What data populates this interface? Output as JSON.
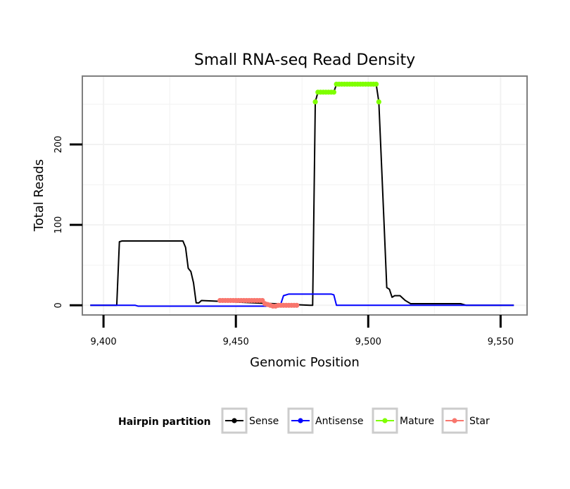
{
  "chart_data": {
    "type": "line",
    "title": "Small RNA-seq Read Density",
    "xlabel": "Genomic Position",
    "ylabel": "Total Reads",
    "xlim": [
      9392,
      9560
    ],
    "ylim": [
      -12,
      285
    ],
    "x_ticks": [
      9400,
      9450,
      9500,
      9550
    ],
    "x_tick_labels": [
      "9,400",
      "9,450",
      "9,500",
      "9,550"
    ],
    "y_ticks": [
      0,
      100,
      200
    ],
    "y_tick_labels": [
      "0",
      "100",
      "200"
    ],
    "grid": true,
    "legend_position": "bottom",
    "legend_title": "Hairpin partition",
    "series": [
      {
        "name": "Sense",
        "color": "#000000",
        "points": [
          [
            9395,
            0
          ],
          [
            9405,
            0
          ],
          [
            9406,
            79
          ],
          [
            9407,
            80
          ],
          [
            9430,
            80
          ],
          [
            9431,
            72
          ],
          [
            9432,
            46
          ],
          [
            9433,
            42
          ],
          [
            9434,
            28
          ],
          [
            9435,
            3
          ],
          [
            9436,
            3
          ],
          [
            9437,
            6
          ],
          [
            9478,
            0
          ],
          [
            9479,
            0
          ],
          [
            9480,
            253
          ],
          [
            9481,
            265
          ],
          [
            9487,
            265
          ],
          [
            9488,
            275
          ],
          [
            9502,
            275
          ],
          [
            9503,
            275
          ],
          [
            9504,
            253
          ],
          [
            9506,
            100
          ],
          [
            9507,
            22
          ],
          [
            9508,
            20
          ],
          [
            9509,
            10
          ],
          [
            9510,
            12
          ],
          [
            9512,
            12
          ],
          [
            9514,
            6
          ],
          [
            9516,
            2
          ],
          [
            9535,
            2
          ],
          [
            9537,
            0
          ],
          [
            9555,
            0
          ]
        ]
      },
      {
        "name": "Antisense",
        "color": "#0000ff",
        "points": [
          [
            9395,
            0
          ],
          [
            9412,
            0
          ],
          [
            9413,
            -1
          ],
          [
            9465,
            -1
          ],
          [
            9467,
            2
          ],
          [
            9468,
            12
          ],
          [
            9470,
            14
          ],
          [
            9486,
            14
          ],
          [
            9487,
            13
          ],
          [
            9488,
            0
          ],
          [
            9555,
            0
          ]
        ]
      },
      {
        "name": "Mature",
        "color": "#7fff00",
        "points": [
          [
            9480,
            253
          ],
          [
            9481,
            265
          ],
          [
            9482,
            265
          ],
          [
            9483,
            265
          ],
          [
            9484,
            265
          ],
          [
            9485,
            265
          ],
          [
            9486,
            265
          ],
          [
            9487,
            265
          ],
          [
            9488,
            275
          ],
          [
            9489,
            275
          ],
          [
            9490,
            275
          ],
          [
            9491,
            275
          ],
          [
            9492,
            275
          ],
          [
            9493,
            275
          ],
          [
            9494,
            275
          ],
          [
            9495,
            275
          ],
          [
            9496,
            275
          ],
          [
            9497,
            275
          ],
          [
            9498,
            275
          ],
          [
            9499,
            275
          ],
          [
            9500,
            275
          ],
          [
            9501,
            275
          ],
          [
            9502,
            275
          ],
          [
            9503,
            275
          ],
          [
            9504,
            253
          ]
        ]
      },
      {
        "name": "Star",
        "color": "#f8766d",
        "points": [
          [
            9444,
            6
          ],
          [
            9445,
            6
          ],
          [
            9446,
            6
          ],
          [
            9447,
            6
          ],
          [
            9448,
            6
          ],
          [
            9449,
            6
          ],
          [
            9450,
            6
          ],
          [
            9451,
            6
          ],
          [
            9452,
            6
          ],
          [
            9453,
            6
          ],
          [
            9454,
            6
          ],
          [
            9455,
            6
          ],
          [
            9456,
            6
          ],
          [
            9457,
            6
          ],
          [
            9458,
            6
          ],
          [
            9459,
            6
          ],
          [
            9460,
            6
          ],
          [
            9461,
            2
          ],
          [
            9462,
            1
          ],
          [
            9463,
            0
          ],
          [
            9464,
            -1
          ],
          [
            9465,
            -1
          ],
          [
            9466,
            0
          ],
          [
            9467,
            0
          ],
          [
            9468,
            0
          ],
          [
            9469,
            0
          ],
          [
            9470,
            0
          ],
          [
            9471,
            0
          ],
          [
            9472,
            0
          ],
          [
            9473,
            0
          ]
        ]
      }
    ]
  }
}
